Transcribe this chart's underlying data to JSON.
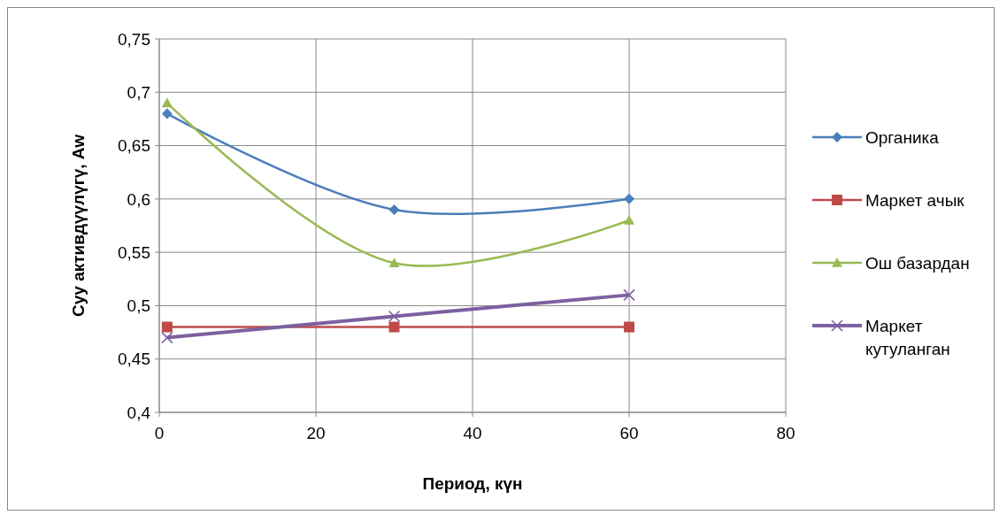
{
  "chart_data": {
    "type": "line",
    "xlabel": "Период, күн",
    "ylabel": "Суу активдүүлүгү, Aw",
    "xlim": [
      0,
      80
    ],
    "xticks": [
      0,
      20,
      40,
      60,
      80
    ],
    "ylim": [
      0.4,
      0.75
    ],
    "yticks": [
      {
        "value": 0.4,
        "label": "0,4"
      },
      {
        "value": 0.45,
        "label": "0,45"
      },
      {
        "value": 0.5,
        "label": "0,5"
      },
      {
        "value": 0.55,
        "label": "0,55"
      },
      {
        "value": 0.6,
        "label": "0,6"
      },
      {
        "value": 0.65,
        "label": "0,65"
      },
      {
        "value": 0.7,
        "label": "0,7"
      },
      {
        "value": 0.75,
        "label": "0,75"
      }
    ],
    "grid": true,
    "legend": "right",
    "x": [
      1,
      30,
      60
    ],
    "series": [
      {
        "name": "Органика",
        "color": "#4a7ebb",
        "marker": "diamond",
        "values": [
          0.68,
          0.59,
          0.6
        ]
      },
      {
        "name": "Маркет ачык",
        "color": "#be4b48",
        "marker": "square",
        "values": [
          0.48,
          0.48,
          0.48
        ]
      },
      {
        "name": "Ош базардан",
        "color": "#98b954",
        "marker": "triangle",
        "values": [
          0.69,
          0.54,
          0.58
        ]
      },
      {
        "name": "Маркет кутуланган",
        "color": "#7d60a0",
        "marker": "cross",
        "values": [
          0.47,
          0.49,
          0.51
        ]
      }
    ]
  }
}
